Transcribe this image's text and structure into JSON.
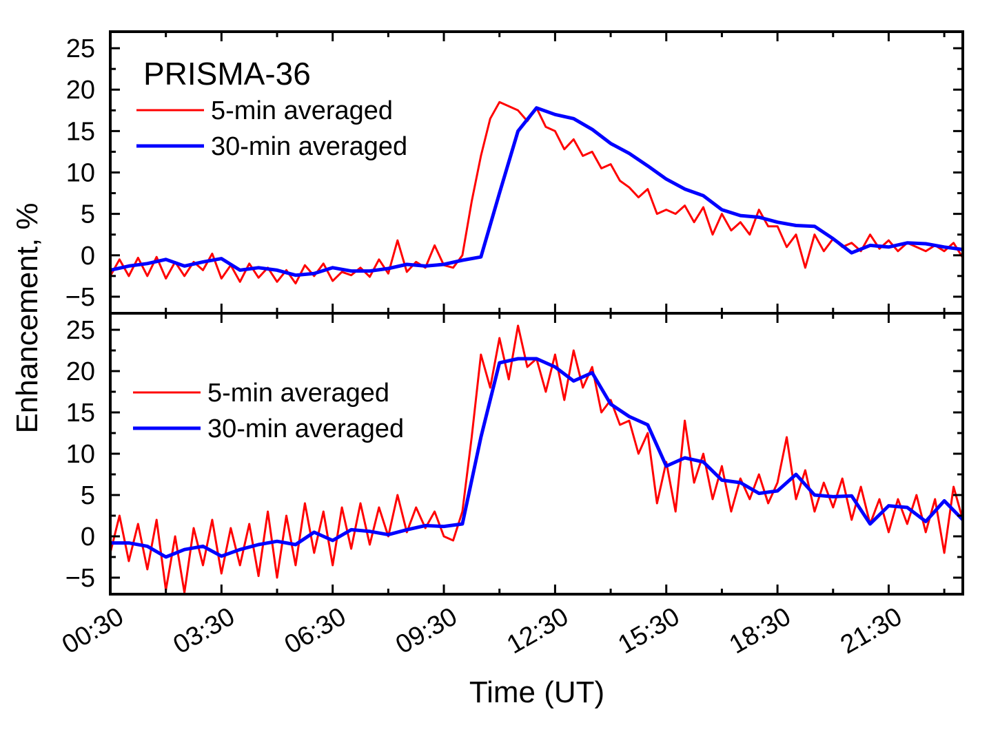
{
  "figure": {
    "xlabel": "Time (UT)",
    "ylabel": "Enhancement, %"
  },
  "colors": {
    "five_min": "#ff0000",
    "thirty_min": "#0000ff",
    "axis": "#000000"
  },
  "chart_data": [
    {
      "type": "line",
      "panel": "top",
      "title": "PRISMA-36",
      "xlabel": "Time (UT)",
      "ylabel": "Enhancement, %",
      "x_unit": "hours UT",
      "xlim": [
        0.5,
        23.5
      ],
      "ylim": [
        -7,
        27
      ],
      "yticks": [
        -5,
        0,
        5,
        10,
        15,
        20,
        25
      ],
      "ytick_labels": [
        "−5",
        "0",
        "5",
        "10",
        "15",
        "20",
        "25"
      ],
      "xticks": [
        0.5,
        3.5,
        6.5,
        9.5,
        12.5,
        15.5,
        18.5,
        21.5
      ],
      "xtick_labels": [
        "00:30",
        "03:30",
        "06:30",
        "09:30",
        "12:30",
        "15:30",
        "18:30",
        "21:30"
      ],
      "grid": false,
      "legend_position": "top-left",
      "series": [
        {
          "name": "5-min averaged",
          "color": "#ff0000",
          "x": [
            0.5,
            0.75,
            1.0,
            1.25,
            1.5,
            1.75,
            2.0,
            2.25,
            2.5,
            2.75,
            3.0,
            3.25,
            3.5,
            3.75,
            4.0,
            4.25,
            4.5,
            4.75,
            5.0,
            5.25,
            5.5,
            5.75,
            6.0,
            6.25,
            6.5,
            6.75,
            7.0,
            7.25,
            7.5,
            7.75,
            8.0,
            8.25,
            8.5,
            8.75,
            9.0,
            9.25,
            9.5,
            9.75,
            10.0,
            10.25,
            10.5,
            10.75,
            11.0,
            11.25,
            11.5,
            11.75,
            12.0,
            12.25,
            12.5,
            12.75,
            13.0,
            13.25,
            13.5,
            13.75,
            14.0,
            14.25,
            14.5,
            14.75,
            15.0,
            15.25,
            15.5,
            15.75,
            16.0,
            16.25,
            16.5,
            16.75,
            17.0,
            17.25,
            17.5,
            17.75,
            18.0,
            18.25,
            18.5,
            18.75,
            19.0,
            19.25,
            19.5,
            19.75,
            20.0,
            20.25,
            20.5,
            20.75,
            21.0,
            21.25,
            21.5,
            21.75,
            22.0,
            22.25,
            22.5,
            22.75,
            23.0,
            23.25,
            23.5
          ],
          "values": [
            -2.5,
            -0.5,
            -2.5,
            -0.3,
            -2.5,
            -0.2,
            -2.8,
            -0.8,
            -2.5,
            -0.8,
            -1.8,
            0.2,
            -2.8,
            -1.2,
            -3.2,
            -1.0,
            -2.7,
            -1.5,
            -3.2,
            -1.8,
            -3.4,
            -1.2,
            -2.5,
            -1.0,
            -3.1,
            -2.0,
            -2.4,
            -1.5,
            -2.6,
            -0.5,
            -2.2,
            1.8,
            -2.0,
            -0.8,
            -1.5,
            1.2,
            -1.2,
            -1.5,
            0.0,
            6.5,
            12.0,
            16.5,
            18.5,
            18.0,
            17.5,
            16.2,
            17.8,
            15.5,
            15.0,
            12.8,
            14.0,
            12.0,
            12.5,
            10.5,
            11.0,
            9.0,
            8.2,
            7.0,
            8.0,
            5.0,
            5.5,
            5.0,
            6.0,
            4.0,
            5.8,
            2.5,
            5.0,
            3.0,
            4.0,
            2.5,
            5.5,
            3.5,
            3.5,
            1.0,
            2.5,
            -1.5,
            2.5,
            0.5,
            2.0,
            1.0,
            1.5,
            0.5,
            2.5,
            0.8,
            1.8,
            0.5,
            1.5,
            1.0,
            0.5,
            1.2,
            0.5,
            1.5,
            -0.3
          ]
        },
        {
          "name": "30-min averaged",
          "color": "#0000ff",
          "x": [
            0.5,
            1.0,
            1.5,
            2.0,
            2.5,
            3.0,
            3.5,
            4.0,
            4.5,
            5.0,
            5.5,
            6.0,
            6.5,
            7.0,
            7.5,
            8.0,
            8.5,
            9.0,
            9.5,
            10.0,
            10.5,
            11.0,
            11.5,
            12.0,
            12.5,
            13.0,
            13.5,
            14.0,
            14.5,
            15.0,
            15.5,
            16.0,
            16.5,
            17.0,
            17.5,
            18.0,
            18.5,
            19.0,
            19.5,
            20.0,
            20.5,
            21.0,
            21.5,
            22.0,
            22.5,
            23.0,
            23.5
          ],
          "values": [
            -1.8,
            -1.3,
            -1.0,
            -0.5,
            -1.3,
            -0.8,
            -0.4,
            -1.8,
            -1.5,
            -1.8,
            -2.4,
            -2.2,
            -1.5,
            -1.9,
            -1.9,
            -1.6,
            -1.1,
            -1.3,
            -1.1,
            -0.6,
            -0.2,
            7.5,
            15.0,
            17.8,
            17.0,
            16.5,
            15.2,
            13.5,
            12.3,
            10.8,
            9.2,
            8.0,
            7.2,
            5.5,
            4.8,
            4.6,
            4.0,
            3.6,
            3.5,
            2.0,
            0.3,
            1.2,
            1.0,
            1.5,
            1.4,
            1.0,
            0.7
          ]
        }
      ]
    },
    {
      "type": "line",
      "panel": "bottom",
      "title": "",
      "xlabel": "Time (UT)",
      "ylabel": "Enhancement, %",
      "x_unit": "hours UT",
      "xlim": [
        0.5,
        23.5
      ],
      "ylim": [
        -7,
        27
      ],
      "yticks": [
        -5,
        0,
        5,
        10,
        15,
        20,
        25
      ],
      "ytick_labels": [
        "−5",
        "0",
        "5",
        "10",
        "15",
        "20",
        "25"
      ],
      "xticks": [
        0.5,
        3.5,
        6.5,
        9.5,
        12.5,
        15.5,
        18.5,
        21.5
      ],
      "xtick_labels": [
        "00:30",
        "03:30",
        "06:30",
        "09:30",
        "12:30",
        "15:30",
        "18:30",
        "21:30"
      ],
      "grid": false,
      "legend_position": "left",
      "series": [
        {
          "name": "5-min averaged",
          "color": "#ff0000",
          "x": [
            0.5,
            0.75,
            1.0,
            1.25,
            1.5,
            1.75,
            2.0,
            2.25,
            2.5,
            2.75,
            3.0,
            3.25,
            3.5,
            3.75,
            4.0,
            4.25,
            4.5,
            4.75,
            5.0,
            5.25,
            5.5,
            5.75,
            6.0,
            6.25,
            6.5,
            6.75,
            7.0,
            7.25,
            7.5,
            7.75,
            8.0,
            8.25,
            8.5,
            8.75,
            9.0,
            9.25,
            9.5,
            9.75,
            10.0,
            10.25,
            10.5,
            10.75,
            11.0,
            11.25,
            11.5,
            11.75,
            12.0,
            12.25,
            12.5,
            12.75,
            13.0,
            13.25,
            13.5,
            13.75,
            14.0,
            14.25,
            14.5,
            14.75,
            15.0,
            15.25,
            15.5,
            15.75,
            16.0,
            16.25,
            16.5,
            16.75,
            17.0,
            17.25,
            17.5,
            17.75,
            18.0,
            18.25,
            18.5,
            18.75,
            19.0,
            19.25,
            19.5,
            19.75,
            20.0,
            20.25,
            20.5,
            20.75,
            21.0,
            21.25,
            21.5,
            21.75,
            22.0,
            22.25,
            22.5,
            22.75,
            23.0,
            23.25,
            23.5
          ],
          "values": [
            -2.0,
            2.5,
            -3.0,
            1.5,
            -4.0,
            2.0,
            -6.5,
            0.0,
            -6.8,
            1.0,
            -3.5,
            2.0,
            -4.5,
            1.0,
            -3.5,
            1.5,
            -4.8,
            3.0,
            -5.0,
            2.5,
            -3.5,
            4.0,
            -2.0,
            3.0,
            -3.5,
            3.5,
            -1.5,
            4.0,
            -1.0,
            3.5,
            0.0,
            5.0,
            0.5,
            3.5,
            1.0,
            3.0,
            0.0,
            -0.5,
            3.0,
            12.0,
            22.0,
            18.0,
            24.0,
            19.0,
            25.5,
            20.5,
            21.5,
            17.5,
            22.0,
            16.5,
            22.5,
            18.0,
            20.5,
            15.0,
            16.5,
            13.5,
            14.0,
            10.0,
            12.5,
            4.0,
            9.0,
            3.0,
            14.0,
            6.5,
            10.0,
            4.5,
            8.5,
            3.0,
            7.0,
            4.5,
            7.5,
            4.0,
            6.5,
            12.0,
            4.5,
            8.0,
            3.0,
            6.5,
            3.5,
            7.0,
            2.0,
            6.0,
            1.5,
            4.5,
            0.5,
            4.5,
            1.5,
            5.0,
            0.5,
            4.5,
            -2.0,
            6.0,
            2.0
          ]
        },
        {
          "name": "30-min averaged",
          "color": "#0000ff",
          "x": [
            0.5,
            1.0,
            1.5,
            2.0,
            2.5,
            3.0,
            3.5,
            4.0,
            4.5,
            5.0,
            5.5,
            6.0,
            6.5,
            7.0,
            7.5,
            8.0,
            8.5,
            9.0,
            9.5,
            10.0,
            10.5,
            11.0,
            11.5,
            12.0,
            12.5,
            13.0,
            13.5,
            14.0,
            14.5,
            15.0,
            15.5,
            16.0,
            16.5,
            17.0,
            17.5,
            18.0,
            18.5,
            19.0,
            19.5,
            20.0,
            20.5,
            21.0,
            21.5,
            22.0,
            22.5,
            23.0,
            23.5
          ],
          "values": [
            -0.8,
            -0.8,
            -1.2,
            -2.5,
            -1.6,
            -1.2,
            -2.4,
            -1.6,
            -1.0,
            -0.6,
            -1.0,
            0.5,
            -0.5,
            0.8,
            0.6,
            0.2,
            0.8,
            1.3,
            1.2,
            1.5,
            12.0,
            21.0,
            21.5,
            21.5,
            20.5,
            18.8,
            19.8,
            16.0,
            14.5,
            13.5,
            8.5,
            9.5,
            9.0,
            6.8,
            6.5,
            5.2,
            5.5,
            7.5,
            5.0,
            4.8,
            4.9,
            1.5,
            3.7,
            3.5,
            1.8,
            4.3,
            2.0
          ]
        }
      ]
    }
  ]
}
